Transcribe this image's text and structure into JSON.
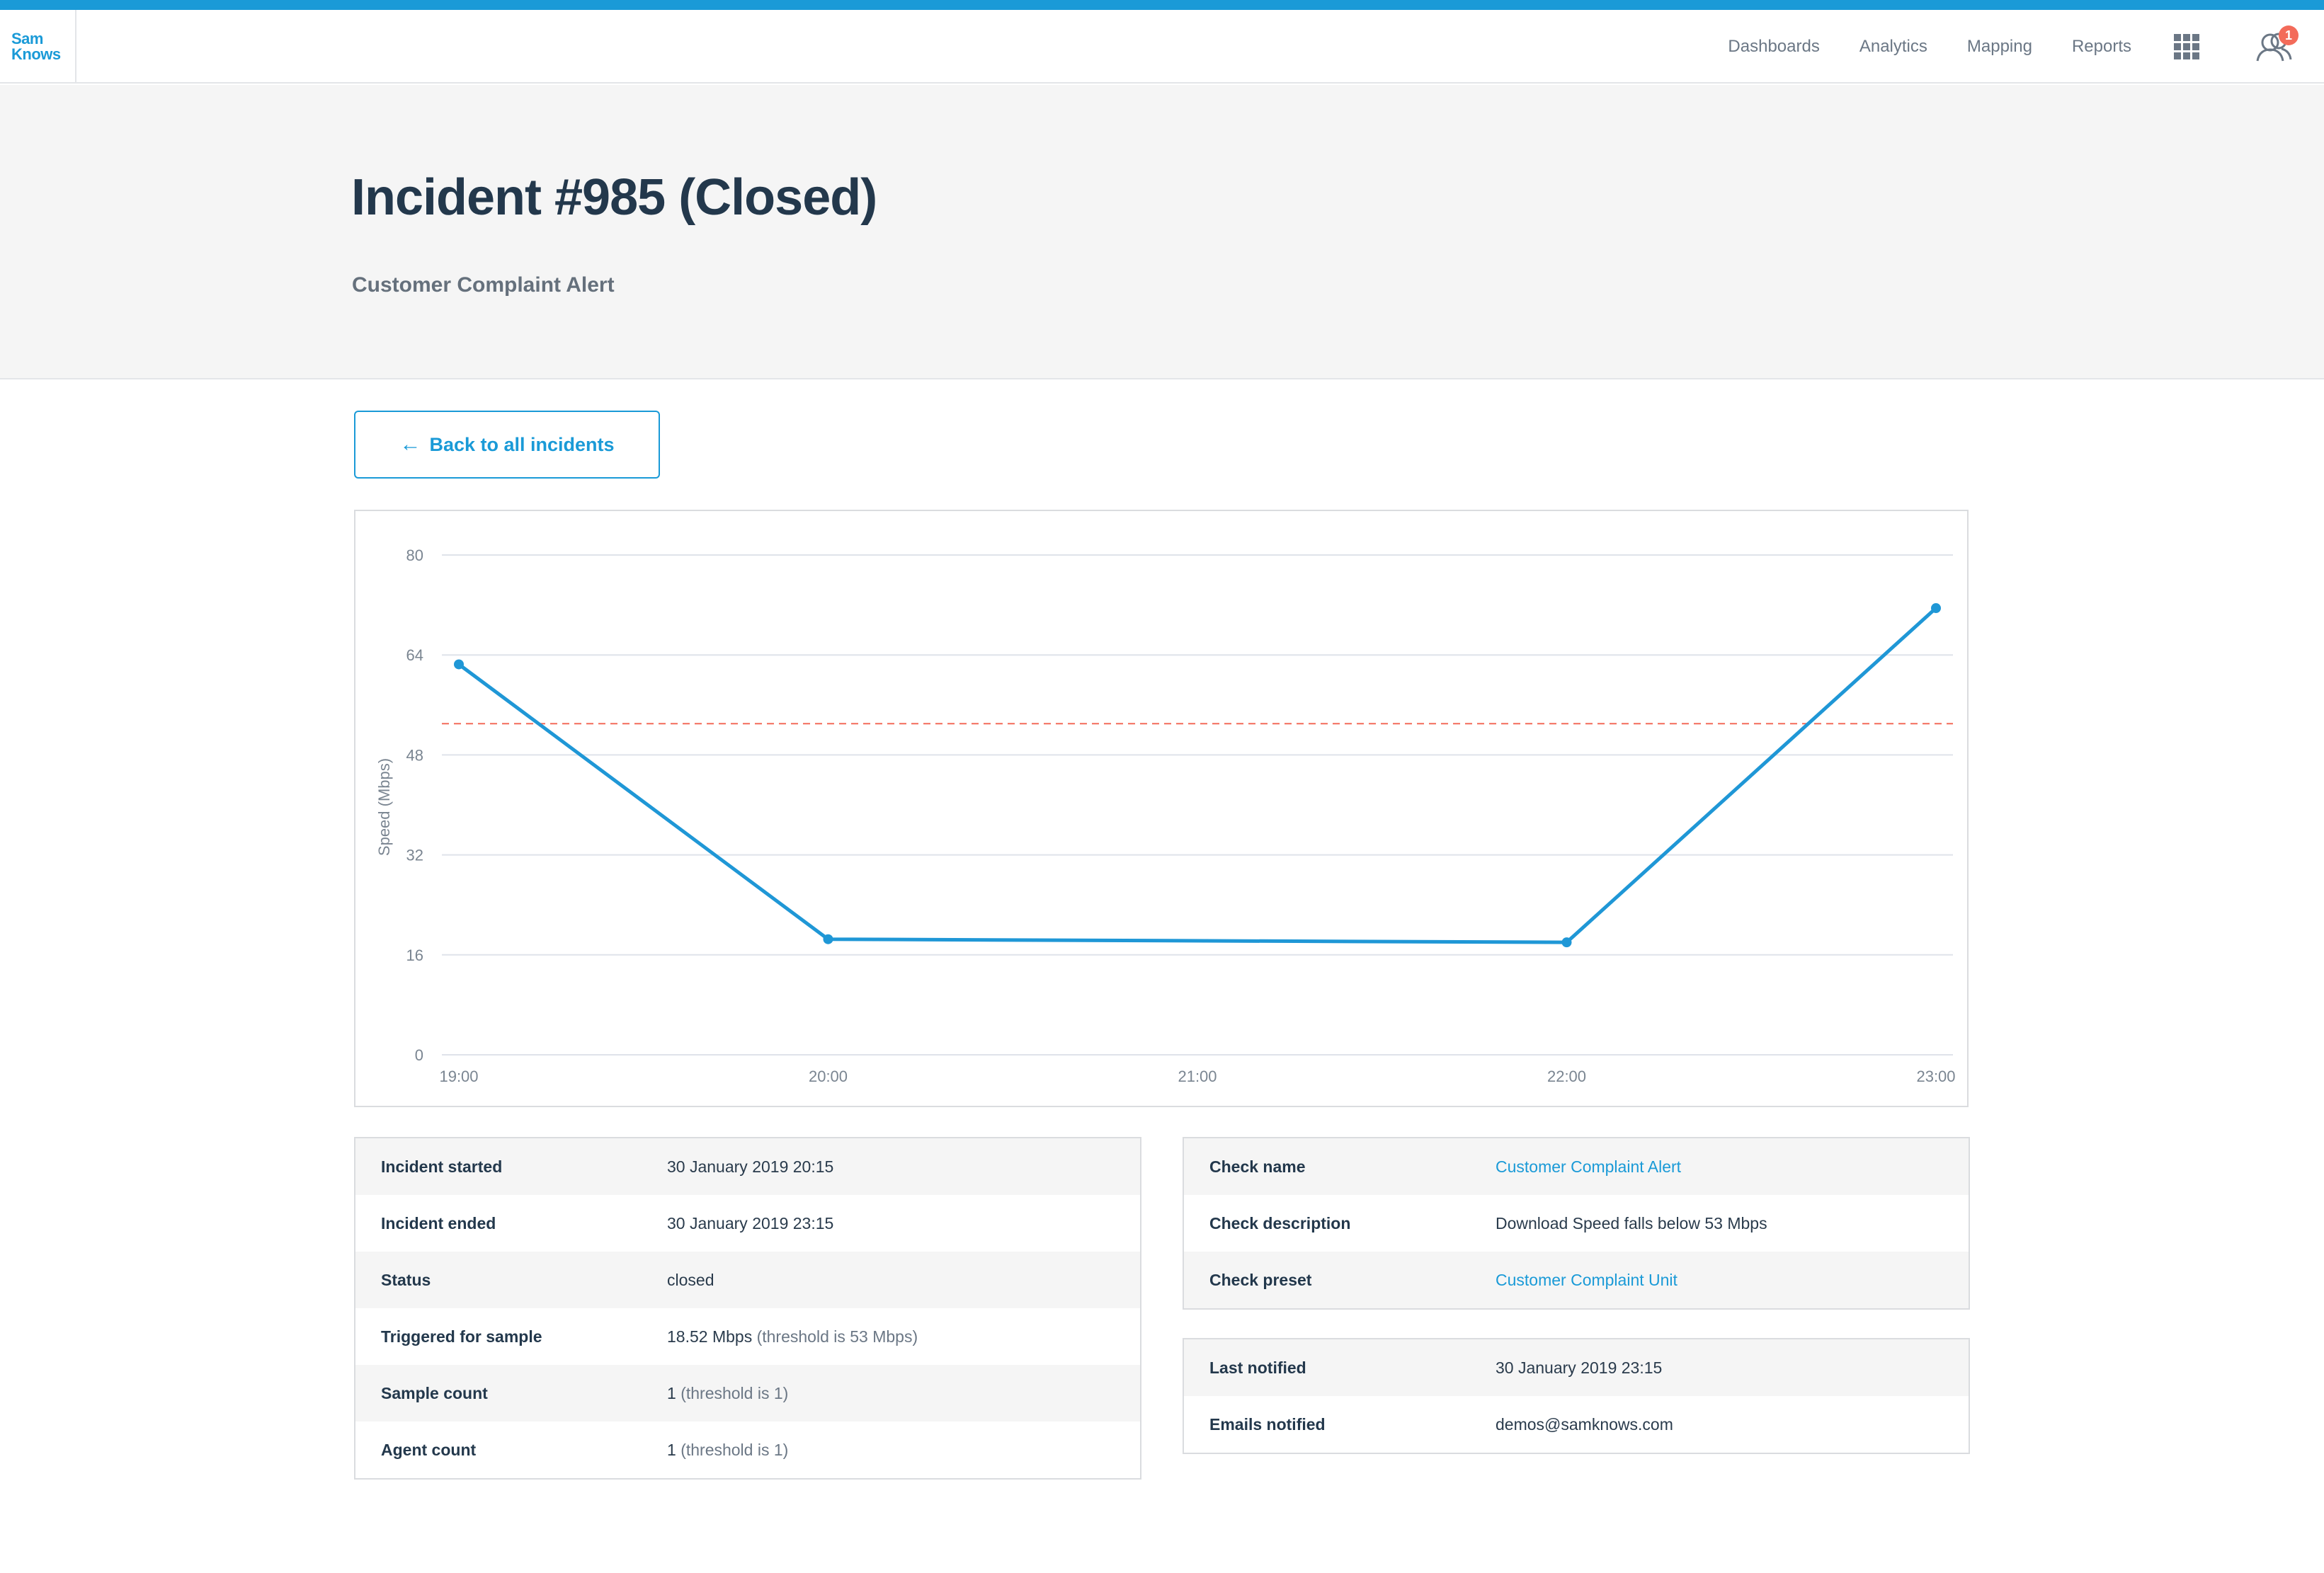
{
  "brand": {
    "logo_line1": "Sam",
    "logo_line2": "Knows",
    "accent": "#1a9ad7"
  },
  "nav": {
    "items": [
      "Dashboards",
      "Analytics",
      "Mapping",
      "Reports"
    ],
    "apps_icon": "grid-icon",
    "user_icon": "user-group-icon",
    "notification_count": "1"
  },
  "page": {
    "title": "Incident #985 (Closed)",
    "subtitle": "Customer Complaint Alert",
    "back_label": "Back to all incidents"
  },
  "chart_data": {
    "type": "line",
    "ylabel": "Speed (Mbps)",
    "xlabel": "",
    "ylim": [
      0,
      80
    ],
    "yticks": [
      0,
      16,
      32,
      48,
      64,
      80
    ],
    "xticks": [
      "19:00",
      "20:00",
      "21:00",
      "22:00",
      "23:00"
    ],
    "series": [
      {
        "color": "#1f97d6",
        "points": [
          {
            "x": "19:00",
            "y": 62.5
          },
          {
            "x": "20:00",
            "y": 18.5
          },
          {
            "x": "22:00",
            "y": 18.0
          },
          {
            "x": "23:00",
            "y": 71.5
          }
        ]
      }
    ],
    "threshold": {
      "value": 53,
      "color": "#f36b5a",
      "style": "dashed"
    },
    "grid": true
  },
  "incident_details": [
    {
      "label": "Incident started",
      "value": "30 January 2019 20:15",
      "note": ""
    },
    {
      "label": "Incident ended",
      "value": "30 January 2019 23:15",
      "note": ""
    },
    {
      "label": "Status",
      "value": "closed",
      "note": ""
    },
    {
      "label": "Triggered for sample",
      "value": "18.52 Mbps",
      "note": "(threshold is 53 Mbps)"
    },
    {
      "label": "Sample count",
      "value": "1",
      "note": "(threshold is 1)"
    },
    {
      "label": "Agent count",
      "value": "1",
      "note": "(threshold is 1)"
    }
  ],
  "check_details": [
    {
      "label": "Check name",
      "value": "Customer Complaint Alert",
      "link": true
    },
    {
      "label": "Check description",
      "value": "Download Speed falls below 53 Mbps",
      "link": false
    },
    {
      "label": "Check preset",
      "value": "Customer Complaint Unit",
      "link": true
    }
  ],
  "notification_details": [
    {
      "label": "Last notified",
      "value": "30 January 2019 23:15"
    },
    {
      "label": "Emails notified",
      "value": "demos@samknows.com"
    }
  ]
}
